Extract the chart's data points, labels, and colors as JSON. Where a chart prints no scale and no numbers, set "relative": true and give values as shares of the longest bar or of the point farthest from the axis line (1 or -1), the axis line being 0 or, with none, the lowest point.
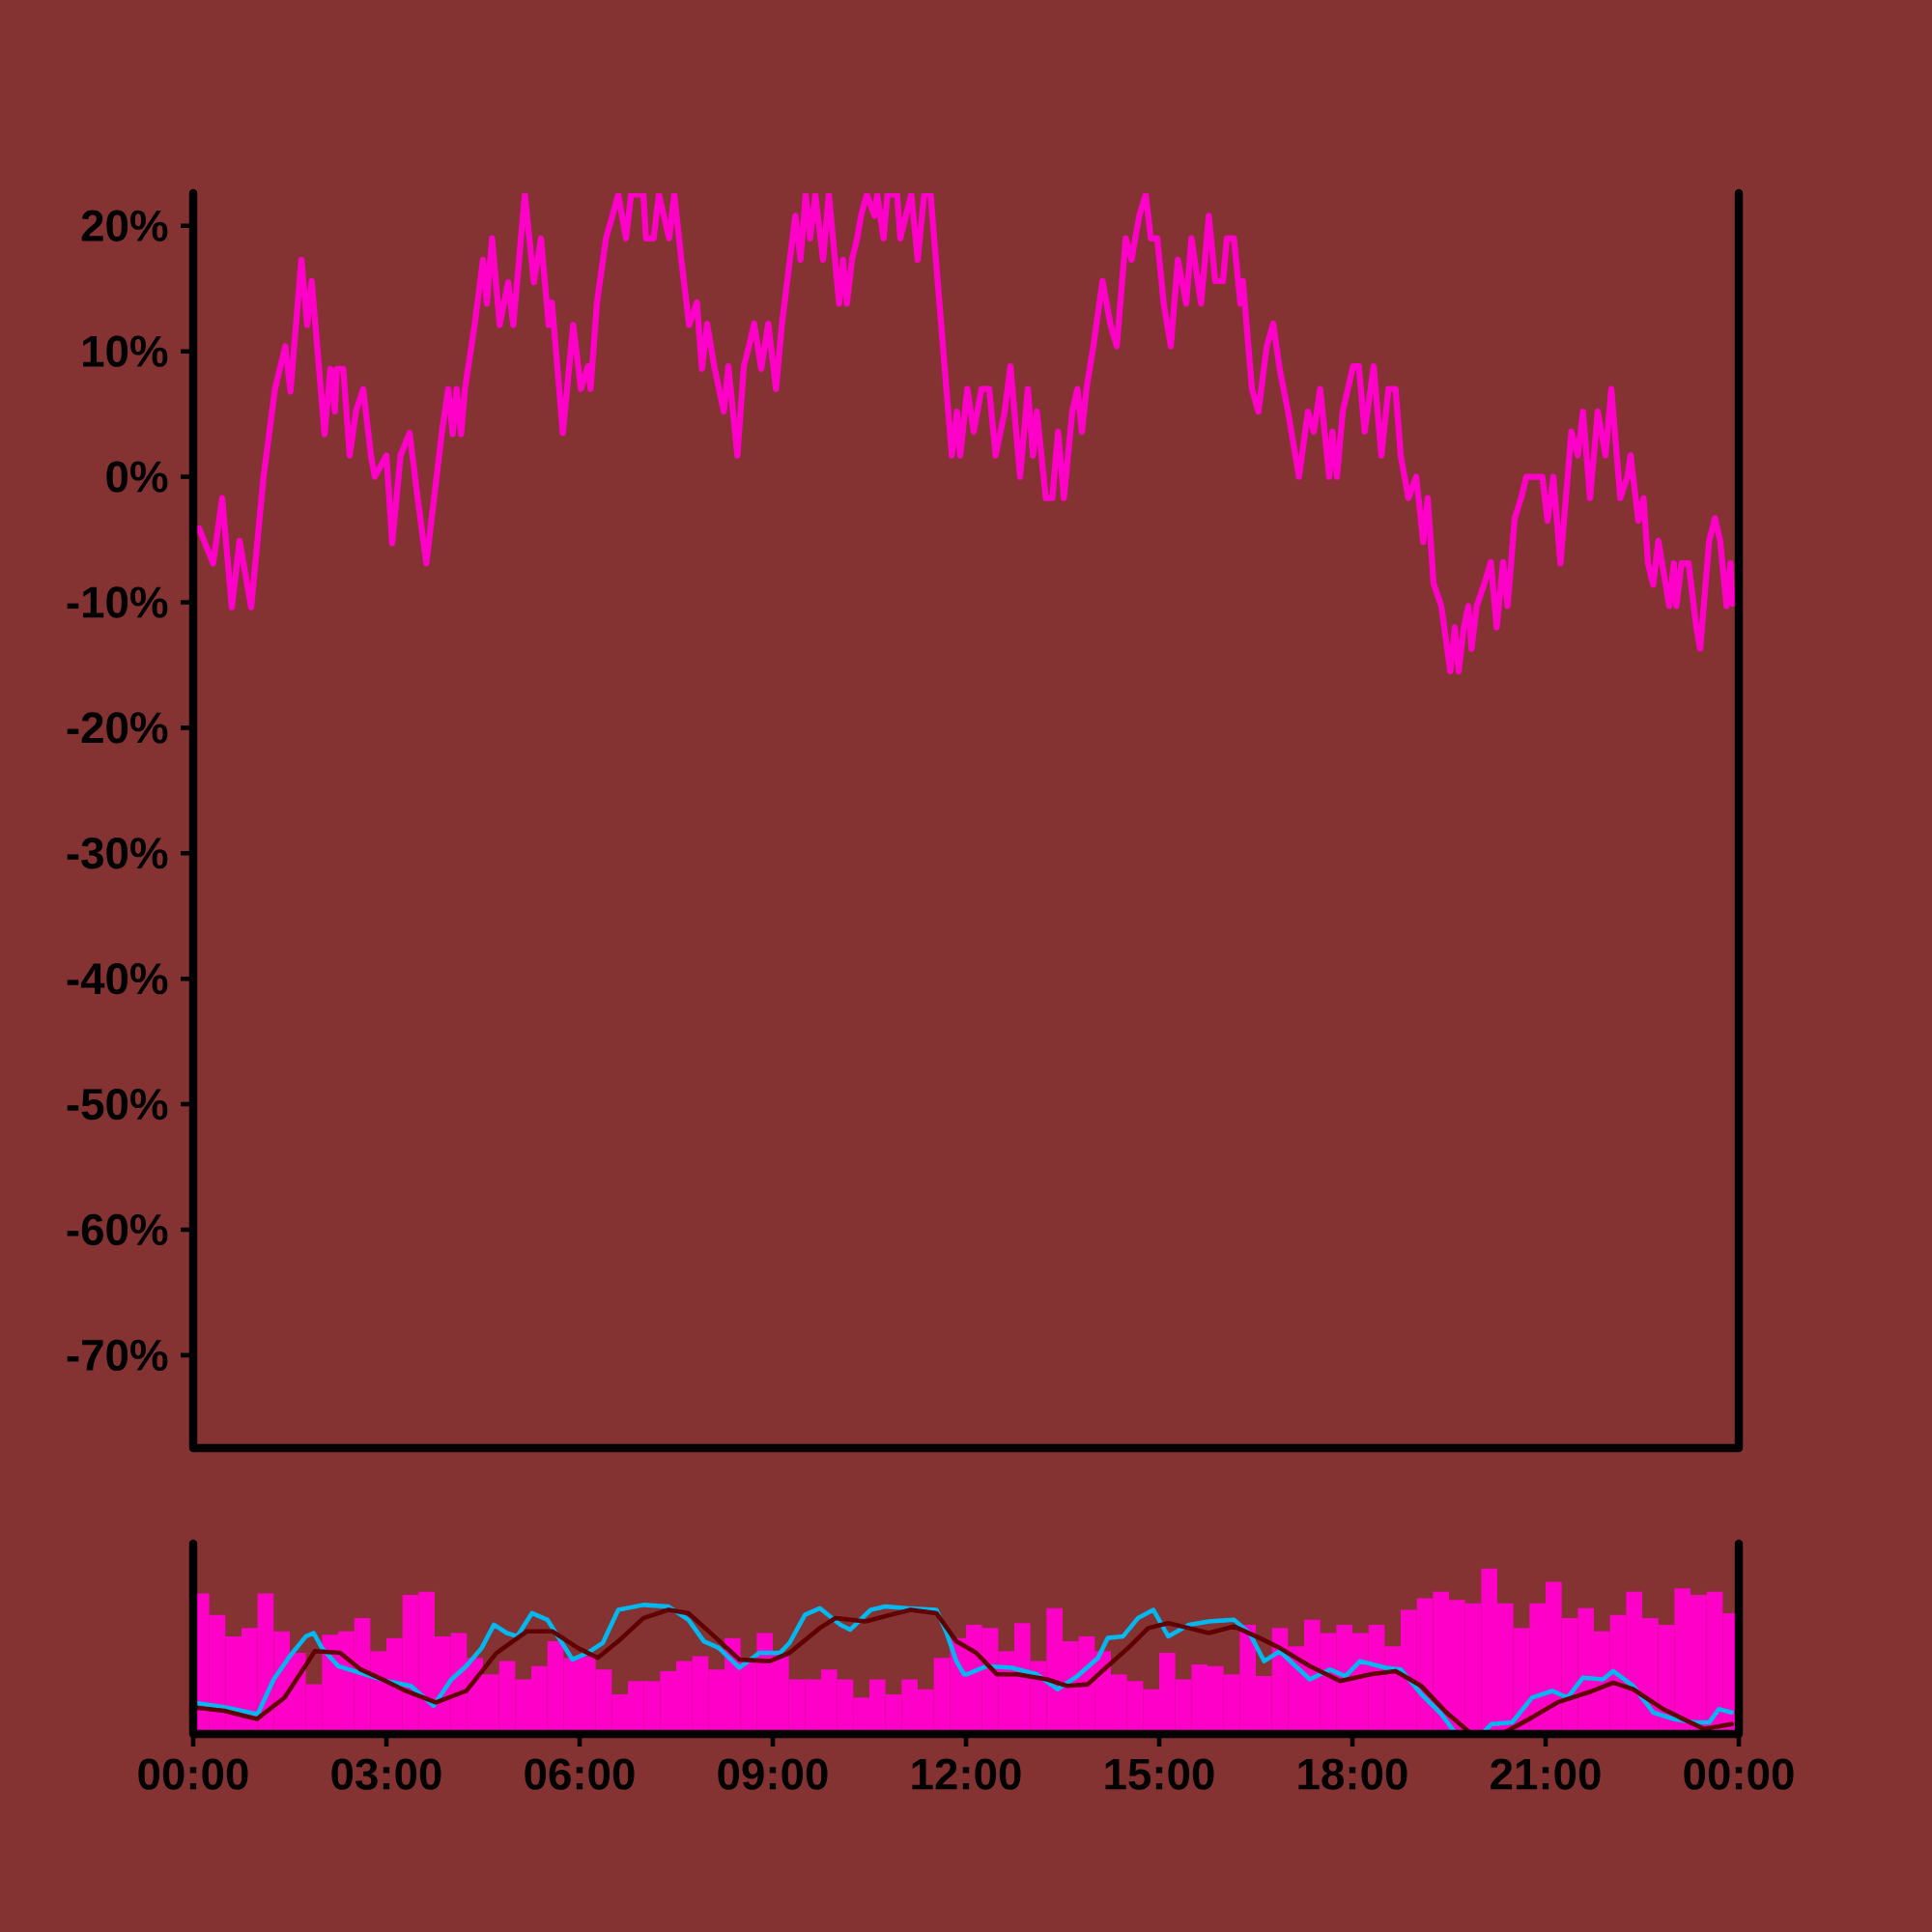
{
  "chart_data": [
    {
      "type": "line",
      "color": "#ff00c8",
      "xlim": [
        0,
        24
      ],
      "ylim": [
        -77.4,
        22.6
      ],
      "tick_labels": "y",
      "yticks": [
        {
          "value": 20,
          "label": "20%"
        },
        {
          "value": 10,
          "label": "10%"
        },
        {
          "value": 0,
          "label": "0%"
        },
        {
          "value": -10,
          "label": "-10%"
        },
        {
          "value": -20,
          "label": "-20%"
        },
        {
          "value": -30,
          "label": "-30%"
        },
        {
          "value": -40,
          "label": "-40%"
        },
        {
          "value": -50,
          "label": "-50%"
        },
        {
          "value": -60,
          "label": "-60%"
        },
        {
          "value": -70,
          "label": "-70%"
        }
      ],
      "x": [
        0.09,
        0.31,
        0.45,
        0.6,
        0.72,
        0.9,
        1.09,
        1.27,
        1.43,
        1.51,
        1.68,
        1.77,
        1.84,
        2.04,
        2.13,
        2.2,
        2.23,
        2.33,
        2.43,
        2.53,
        2.64,
        2.76,
        2.82,
        3.0,
        3.09,
        3.22,
        3.36,
        3.49,
        3.62,
        3.86,
        3.96,
        4.03,
        4.09,
        4.16,
        4.22,
        4.37,
        4.5,
        4.56,
        4.64,
        4.76,
        4.89,
        4.97,
        5.15,
        5.29,
        5.4,
        5.52,
        5.57,
        5.74,
        5.9,
        6.02,
        6.13,
        6.17,
        6.27,
        6.41,
        6.51,
        6.6,
        6.72,
        6.8,
        6.99,
        7.03,
        7.15,
        7.23,
        7.39,
        7.47,
        7.58,
        7.7,
        7.82,
        7.9,
        7.98,
        8.09,
        8.24,
        8.31,
        8.45,
        8.55,
        8.63,
        8.71,
        8.82,
        8.93,
        9.05,
        9.14,
        9.35,
        9.43,
        9.51,
        9.58,
        9.66,
        9.78,
        9.87,
        10.03,
        10.09,
        10.15,
        10.23,
        10.31,
        10.37,
        10.46,
        10.58,
        10.62,
        10.72,
        10.78,
        10.93,
        10.98,
        11.15,
        11.25,
        11.35,
        11.45,
        11.78,
        11.86,
        11.91,
        12.02,
        12.12,
        12.24,
        12.36,
        12.46,
        12.6,
        12.69,
        12.84,
        12.96,
        13.04,
        13.1,
        13.24,
        13.34,
        13.43,
        13.52,
        13.65,
        13.73,
        13.8,
        13.87,
        13.98,
        14.12,
        14.24,
        14.34,
        14.48,
        14.57,
        14.69,
        14.79,
        14.87,
        14.97,
        15.07,
        15.18,
        15.29,
        15.42,
        15.5,
        15.65,
        15.77,
        15.87,
        15.99,
        16.05,
        16.16,
        16.26,
        16.3,
        16.44,
        16.54,
        16.67,
        16.77,
        16.87,
        17.0,
        17.17,
        17.31,
        17.4,
        17.5,
        17.64,
        17.69,
        17.76,
        17.85,
        17.93,
        18.01,
        18.1,
        18.19,
        18.33,
        18.45,
        18.56,
        18.67,
        18.75,
        18.87,
        18.99,
        19.1,
        19.17,
        19.26,
        19.38,
        19.52,
        19.59,
        19.65,
        19.73,
        19.8,
        19.85,
        19.93,
        20.05,
        20.15,
        20.24,
        20.34,
        20.41,
        20.52,
        20.62,
        20.7,
        20.95,
        21.03,
        21.12,
        21.23,
        21.4,
        21.5,
        21.58,
        21.69,
        21.81,
        21.93,
        22.02,
        22.16,
        22.27,
        22.32,
        22.44,
        22.52,
        22.59,
        22.67,
        22.75,
        22.92,
        22.99,
        23.03,
        23.11,
        23.22,
        23.34,
        23.4,
        23.54,
        23.63,
        23.71,
        23.81,
        23.87,
        23.9
      ],
      "values": [
        -4.1,
        -6.9,
        -1.7,
        -10.4,
        -5.1,
        -10.4,
        -0.1,
        7.0,
        10.4,
        6.8,
        17.3,
        12.1,
        15.6,
        3.4,
        8.6,
        5.2,
        8.6,
        8.6,
        1.7,
        5.3,
        7.0,
        1.7,
        0.0,
        1.7,
        -5.3,
        1.7,
        3.5,
        -1.9,
        -6.9,
        3.5,
        7.0,
        3.4,
        7.0,
        3.4,
        7.0,
        12.1,
        17.3,
        13.8,
        19.0,
        12.1,
        15.5,
        12.1,
        22.5,
        15.5,
        19.0,
        12.1,
        13.9,
        3.5,
        12.1,
        7.0,
        8.8,
        7.0,
        13.9,
        19.0,
        20.8,
        22.5,
        19.0,
        22.5,
        22.5,
        19.0,
        19.0,
        22.5,
        19.0,
        22.5,
        17.3,
        12.1,
        13.9,
        8.6,
        12.2,
        8.8,
        5.2,
        8.8,
        1.7,
        8.8,
        10.4,
        12.2,
        8.6,
        12.2,
        7.0,
        12.1,
        20.8,
        17.3,
        22.5,
        19.0,
        22.5,
        17.3,
        22.5,
        13.8,
        17.3,
        13.8,
        17.3,
        19.0,
        20.8,
        22.5,
        20.8,
        22.5,
        19.0,
        22.5,
        22.5,
        19.0,
        22.5,
        17.3,
        22.5,
        22.5,
        1.7,
        5.2,
        1.7,
        7.0,
        3.6,
        7.0,
        7.0,
        1.7,
        5.2,
        8.8,
        0.0,
        7.0,
        1.7,
        5.2,
        -1.7,
        -1.7,
        3.6,
        -1.7,
        5.2,
        7.0,
        3.6,
        7.0,
        10.5,
        15.6,
        12.2,
        10.4,
        19.0,
        17.3,
        20.8,
        22.5,
        19.0,
        19.0,
        13.8,
        10.4,
        17.3,
        13.8,
        19.0,
        13.8,
        20.8,
        15.6,
        15.6,
        19.0,
        19.0,
        13.8,
        15.6,
        7.0,
        5.2,
        10.4,
        12.2,
        8.6,
        5.2,
        0.0,
        5.2,
        3.6,
        7.0,
        0.0,
        3.6,
        0.0,
        5.2,
        7.0,
        8.8,
        8.8,
        3.6,
        8.8,
        1.7,
        7.0,
        7.0,
        1.7,
        -1.7,
        0.0,
        -5.2,
        -1.7,
        -8.5,
        -10.3,
        -15.5,
        -12.0,
        -15.5,
        -12.0,
        -10.3,
        -13.7,
        -10.3,
        -8.5,
        -6.8,
        -12.0,
        -6.8,
        -10.3,
        -3.3,
        -1.7,
        0.0,
        0.0,
        -3.5,
        0.0,
        -6.9,
        3.6,
        1.7,
        5.2,
        -1.7,
        5.2,
        1.7,
        7.0,
        -1.7,
        0.0,
        1.7,
        -3.5,
        -1.7,
        -6.9,
        -8.6,
        -5.1,
        -10.3,
        -6.9,
        -10.3,
        -6.9,
        -6.9,
        -12.0,
        -13.7,
        -5.1,
        -3.3,
        -5.1,
        -10.3,
        -6.9,
        -10.1
      ]
    },
    {
      "type": "bar",
      "relative": true,
      "xlim": [
        0,
        24
      ],
      "tick_labels": "x",
      "xticks": [
        {
          "value": 0,
          "label": "00:00"
        },
        {
          "value": 3,
          "label": "03:00"
        },
        {
          "value": 6,
          "label": "06:00"
        },
        {
          "value": 9,
          "label": "09:00"
        },
        {
          "value": 12,
          "label": "12:00"
        },
        {
          "value": 15,
          "label": "15:00"
        },
        {
          "value": 18,
          "label": "18:00"
        },
        {
          "value": 21,
          "label": "21:00"
        },
        {
          "value": 24,
          "label": "00:00"
        }
      ],
      "series": [
        {
          "type": "bar",
          "color": "#ff00c8",
          "x": [
            0.125,
            0.375,
            0.625,
            0.875,
            1.125,
            1.375,
            1.625,
            1.875,
            2.125,
            2.375,
            2.625,
            2.875,
            3.125,
            3.375,
            3.625,
            3.875,
            4.125,
            4.375,
            4.625,
            4.875,
            5.125,
            5.375,
            5.625,
            5.875,
            6.125,
            6.375,
            6.625,
            6.875,
            7.125,
            7.375,
            7.625,
            7.875,
            8.125,
            8.375,
            8.625,
            8.875,
            9.125,
            9.375,
            9.625,
            9.875,
            10.125,
            10.375,
            10.625,
            10.875,
            11.125,
            11.375,
            11.625,
            11.875,
            12.125,
            12.375,
            12.625,
            12.875,
            13.125,
            13.375,
            13.625,
            13.875,
            14.125,
            14.375,
            14.625,
            14.875,
            15.125,
            15.375,
            15.625,
            15.875,
            16.125,
            16.375,
            16.625,
            16.875,
            17.125,
            17.375,
            17.625,
            17.875,
            18.125,
            18.375,
            18.625,
            18.875,
            19.125,
            19.375,
            19.625,
            19.875,
            20.125,
            20.375,
            20.625,
            20.875,
            21.125,
            21.375,
            21.625,
            21.875,
            22.125,
            22.375,
            22.625,
            22.875,
            23.125,
            23.375,
            23.625,
            23.875
          ],
          "values": [
            0.85,
            0.72,
            0.59,
            0.64,
            0.85,
            0.62,
            0.49,
            0.3,
            0.6,
            0.62,
            0.7,
            0.5,
            0.58,
            0.84,
            0.86,
            0.59,
            0.61,
            0.46,
            0.36,
            0.44,
            0.33,
            0.41,
            0.56,
            0.46,
            0.47,
            0.39,
            0.24,
            0.32,
            0.32,
            0.38,
            0.44,
            0.47,
            0.39,
            0.58,
            0.46,
            0.61,
            0.49,
            0.33,
            0.33,
            0.39,
            0.33,
            0.22,
            0.33,
            0.24,
            0.33,
            0.27,
            0.46,
            0.58,
            0.66,
            0.64,
            0.5,
            0.67,
            0.44,
            0.76,
            0.56,
            0.59,
            0.5,
            0.36,
            0.32,
            0.27,
            0.49,
            0.33,
            0.42,
            0.41,
            0.36,
            0.66,
            0.35,
            0.64,
            0.53,
            0.69,
            0.61,
            0.66,
            0.61,
            0.66,
            0.53,
            0.75,
            0.82,
            0.86,
            0.81,
            0.79,
            1.0,
            0.79,
            0.64,
            0.79,
            0.92,
            0.7,
            0.76,
            0.62,
            0.72,
            0.86,
            0.7,
            0.66,
            0.88,
            0.84,
            0.86,
            0.73
          ]
        },
        {
          "type": "line",
          "color": "#00b8f0",
          "x": [
            0.0,
            0.5,
            1.0,
            1.25,
            1.5,
            1.75,
            1.87,
            2.0,
            2.25,
            2.5,
            3.0,
            3.38,
            3.73,
            4.01,
            4.24,
            4.48,
            4.67,
            4.87,
            5.03,
            5.26,
            5.5,
            5.89,
            6.12,
            6.36,
            6.6,
            6.99,
            7.38,
            7.69,
            7.93,
            8.16,
            8.48,
            8.79,
            9.11,
            9.26,
            9.5,
            9.73,
            10.05,
            10.2,
            10.52,
            10.75,
            11.07,
            11.54,
            11.69,
            11.85,
            11.97,
            12.01,
            12.32,
            12.71,
            13.1,
            13.42,
            13.73,
            14.05,
            14.2,
            14.44,
            14.67,
            14.91,
            15.14,
            15.46,
            15.77,
            16.16,
            16.4,
            16.63,
            16.87,
            17.34,
            17.65,
            17.89,
            18.12,
            18.52,
            18.75,
            19.07,
            19.38,
            19.61,
            20.01,
            20.16,
            20.48,
            20.79,
            21.1,
            21.34,
            21.58,
            21.89,
            22.05,
            22.36,
            22.67,
            22.99,
            23.3,
            23.54,
            23.69,
            23.89
          ],
          "values": [
            0.19,
            0.16,
            0.12,
            0.33,
            0.47,
            0.59,
            0.61,
            0.52,
            0.41,
            0.38,
            0.32,
            0.29,
            0.17,
            0.33,
            0.41,
            0.52,
            0.66,
            0.61,
            0.59,
            0.73,
            0.69,
            0.45,
            0.49,
            0.55,
            0.75,
            0.78,
            0.77,
            0.69,
            0.56,
            0.52,
            0.4,
            0.49,
            0.49,
            0.55,
            0.72,
            0.76,
            0.66,
            0.63,
            0.75,
            0.77,
            0.76,
            0.75,
            0.62,
            0.44,
            0.36,
            0.36,
            0.41,
            0.4,
            0.36,
            0.27,
            0.35,
            0.46,
            0.58,
            0.59,
            0.7,
            0.75,
            0.59,
            0.66,
            0.68,
            0.69,
            0.61,
            0.44,
            0.5,
            0.33,
            0.39,
            0.35,
            0.44,
            0.4,
            0.39,
            0.24,
            0.12,
            0.0,
            0.0,
            0.06,
            0.07,
            0.22,
            0.26,
            0.22,
            0.34,
            0.33,
            0.38,
            0.29,
            0.13,
            0.09,
            0.07,
            0.07,
            0.15,
            0.13
          ]
        },
        {
          "type": "line",
          "color": "#600000",
          "x": [
            0.0,
            0.48,
            0.99,
            1.42,
            1.89,
            2.28,
            2.6,
            2.99,
            3.3,
            3.77,
            4.24,
            4.71,
            5.18,
            5.58,
            5.97,
            6.28,
            6.6,
            6.99,
            7.38,
            7.69,
            8.09,
            8.48,
            8.95,
            9.26,
            9.73,
            9.97,
            10.44,
            10.83,
            11.14,
            11.54,
            11.85,
            12.16,
            12.48,
            12.79,
            13.26,
            13.58,
            13.89,
            14.2,
            14.52,
            14.83,
            15.14,
            15.46,
            15.77,
            16.16,
            16.56,
            16.87,
            17.34,
            17.81,
            18.28,
            18.67,
            19.07,
            19.46,
            19.85,
            20.32,
            20.79,
            21.18,
            21.73,
            22.05,
            22.36,
            22.83,
            23.14,
            23.46,
            23.89
          ],
          "values": [
            0.16,
            0.14,
            0.09,
            0.22,
            0.5,
            0.49,
            0.39,
            0.32,
            0.26,
            0.19,
            0.26,
            0.49,
            0.62,
            0.62,
            0.52,
            0.46,
            0.56,
            0.7,
            0.75,
            0.73,
            0.59,
            0.45,
            0.44,
            0.49,
            0.64,
            0.7,
            0.68,
            0.72,
            0.75,
            0.73,
            0.56,
            0.49,
            0.36,
            0.36,
            0.33,
            0.29,
            0.3,
            0.41,
            0.52,
            0.64,
            0.67,
            0.64,
            0.61,
            0.65,
            0.58,
            0.52,
            0.41,
            0.32,
            0.36,
            0.38,
            0.29,
            0.13,
            0.0,
            0.0,
            0.1,
            0.19,
            0.26,
            0.31,
            0.27,
            0.15,
            0.09,
            0.03,
            0.06
          ]
        }
      ]
    }
  ]
}
